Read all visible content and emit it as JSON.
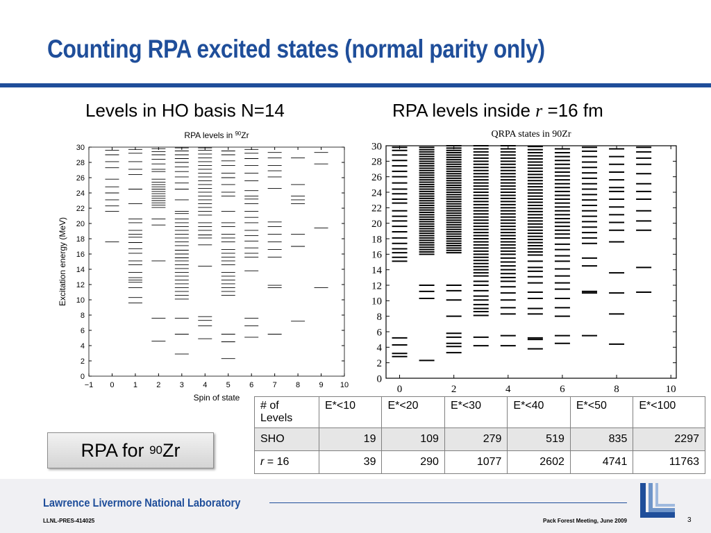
{
  "slide": {
    "title": "Counting RPA excited states (normal parity only)",
    "left_heading": "Levels in HO basis N=14",
    "right_heading": {
      "prefix": "RPA levels inside ",
      "var": "r",
      "suffix": " =16 fm"
    },
    "callout": {
      "text": "RPA for ",
      "superscript": "90",
      "element": "Zr"
    }
  },
  "table": {
    "header": [
      "# of Levels",
      "E*<10",
      "E*<20",
      "E*<30",
      "E*<40",
      "E*<50",
      "E*<100"
    ],
    "rows": [
      {
        "label": "SHO",
        "label_var": "",
        "values": [
          "19",
          "109",
          "279",
          "519",
          "835",
          "2297"
        ]
      },
      {
        "label": " = 16",
        "label_var": "r",
        "values": [
          "39",
          "290",
          "1077",
          "2602",
          "4741",
          "11763"
        ]
      }
    ]
  },
  "footer": {
    "lab": "Lawrence Livermore National Laboratory",
    "doc_id": "LLNL-PRES-414025",
    "meeting": "Pack Forest Meeting, June 2009",
    "page": "3"
  },
  "colors": {
    "brand_blue": "#1f4e9a",
    "footer_band": "#f0f0f3",
    "table_header_shade": "#e6e6e6"
  },
  "chart_data": [
    {
      "type": "scatter",
      "title": "RPA levels in 90Zr",
      "title_parts": {
        "prefix": "RPA levels in ",
        "sup": "90",
        "suffix": "Zr"
      },
      "xlabel": "Spin of state",
      "ylabel": "Excitation energy (MeV)",
      "xlim": [
        -1,
        10
      ],
      "ylim": [
        0,
        30
      ],
      "xticks": [
        "−1",
        "0",
        "1",
        "2",
        "3",
        "4",
        "5",
        "6",
        "7",
        "8",
        "9",
        "10"
      ],
      "yticks": [
        "0",
        "2",
        "4",
        "6",
        "8",
        "10",
        "12",
        "14",
        "16",
        "18",
        "20",
        "22",
        "24",
        "26",
        "28",
        "30"
      ],
      "grid": false,
      "series": [
        {
          "x": 0,
          "energies": [
            17.6,
            21.6,
            22.3,
            23.1,
            24.0,
            24.8,
            25.8,
            27.3,
            28.1,
            29.0,
            29.6
          ]
        },
        {
          "x": 1,
          "energies": [
            9.6,
            10.3,
            11.6,
            12.3,
            12.6,
            12.9,
            13.6,
            14.6,
            15.1,
            16.1,
            16.7,
            17.5,
            18.2,
            18.6,
            19.1,
            20.1,
            20.6,
            22.6,
            24.5,
            26.4,
            27.1,
            28.1,
            29.2,
            29.7
          ]
        },
        {
          "x": 2,
          "energies": [
            4.6,
            7.6,
            15.1,
            19.8,
            20.6,
            22.1,
            22.4,
            22.7,
            23.0,
            23.3,
            23.6,
            23.9,
            24.2,
            24.5,
            24.8,
            25.1,
            25.4,
            25.8,
            26.8,
            27.1,
            27.8,
            28.4,
            29.0,
            29.4,
            29.8
          ]
        },
        {
          "x": 3,
          "energies": [
            2.9,
            5.5,
            7.6,
            10.1,
            10.6,
            11.1,
            11.6,
            12.1,
            12.6,
            13.1,
            13.6,
            14.1,
            14.6,
            15.1,
            15.5,
            16.0,
            16.5,
            17.1,
            17.6,
            18.1,
            18.6,
            19.1,
            19.6,
            20.1,
            20.6,
            21.3,
            21.6,
            23.1,
            24.5,
            25.3,
            26.1,
            26.8,
            27.4,
            28.0,
            28.5,
            29.0,
            29.5,
            29.9
          ]
        },
        {
          "x": 4,
          "energies": [
            4.9,
            6.6,
            7.3,
            7.8,
            14.4,
            17.2,
            18.1,
            18.5,
            19.1,
            19.6,
            20.1,
            21.1,
            21.6,
            22.1,
            22.6,
            23.1,
            23.6,
            24.1,
            24.6,
            25.1,
            25.6,
            26.1,
            26.6,
            27.1,
            27.6,
            28.1,
            28.6,
            29.1,
            29.6,
            29.9
          ]
        },
        {
          "x": 5,
          "energies": [
            2.3,
            4.5,
            5.5,
            10.6,
            11.1,
            11.6,
            12.1,
            12.6,
            13.1,
            13.6,
            14.6,
            15.1,
            15.6,
            16.1,
            16.6,
            17.6,
            18.1,
            18.6,
            19.6,
            20.1,
            21.6,
            23.6,
            24.1,
            25.1,
            26.0,
            26.6,
            27.6,
            28.2,
            29.0,
            29.5
          ]
        },
        {
          "x": 6,
          "energies": [
            5.1,
            6.6,
            7.6,
            13.8,
            15.6,
            16.1,
            16.8,
            17.7,
            18.4,
            19.1,
            20.1,
            20.8,
            21.6,
            22.6,
            23.2,
            23.6,
            24.3,
            25.6,
            26.6,
            27.6,
            28.5,
            29.2,
            29.7
          ]
        },
        {
          "x": 7,
          "energies": [
            5.5,
            11.6,
            11.9,
            15.6,
            16.6,
            17.6,
            18.6,
            19.6,
            20.2,
            24.6,
            26.1,
            26.9,
            27.6,
            28.6,
            29.3
          ]
        },
        {
          "x": 8,
          "energies": [
            7.2,
            17.0,
            18.6,
            22.6,
            23.1,
            23.6,
            25.1,
            28.6
          ]
        },
        {
          "x": 9,
          "energies": [
            11.6,
            19.4,
            27.8,
            29.3
          ]
        }
      ]
    },
    {
      "type": "scatter",
      "title": "QRPA states in 90Zr",
      "xlabel": "",
      "ylabel": "",
      "xlim": [
        -0.5,
        10.2
      ],
      "ylim": [
        0,
        30
      ],
      "xticks": [
        "0",
        "2",
        "4",
        "6",
        "8",
        "10"
      ],
      "yticks": [
        "0",
        "2",
        "4",
        "6",
        "8",
        "10",
        "12",
        "14",
        "16",
        "18",
        "20",
        "22",
        "24",
        "26",
        "28",
        "30"
      ],
      "grid": false,
      "series": [
        {
          "x": 0,
          "energies": [
            2.8,
            3.2,
            4.3,
            5.2,
            15.1,
            15.6,
            16.2,
            16.7,
            17.4,
            18.1,
            18.9,
            19.6,
            20.3,
            20.9,
            21.6,
            22.6,
            23.1,
            23.8,
            24.4,
            25.2,
            26.0,
            26.7,
            27.4,
            28.1,
            28.8,
            29.4,
            29.8
          ]
        },
        {
          "x": 1,
          "energies": [
            2.3,
            10.3,
            11.2,
            12.0,
            16.0,
            16.3,
            16.6,
            16.9,
            17.2,
            17.5,
            17.8,
            18.1,
            18.4,
            18.7,
            19.0,
            19.3,
            19.6,
            19.9,
            20.2,
            20.5,
            20.8,
            21.1,
            21.4,
            21.7,
            22.0,
            22.3,
            22.6,
            22.9,
            23.2,
            23.5,
            23.8,
            24.1,
            24.4,
            24.7,
            25.0,
            25.3,
            25.6,
            25.9,
            26.2,
            26.5,
            26.8,
            27.1,
            27.4,
            27.7,
            28.0,
            28.3,
            28.6,
            28.9,
            29.2,
            29.5,
            29.8
          ]
        },
        {
          "x": 2,
          "energies": [
            3.3,
            4.1,
            4.5,
            5.3,
            5.8,
            8.0,
            10.1,
            11.3,
            12.0,
            16.2,
            16.5,
            16.8,
            17.1,
            17.4,
            17.7,
            18.0,
            18.3,
            18.6,
            18.9,
            19.2,
            19.5,
            19.8,
            20.1,
            20.4,
            20.7,
            21.0,
            21.3,
            21.6,
            21.9,
            22.2,
            22.5,
            22.8,
            23.1,
            23.4,
            23.7,
            24.0,
            24.3,
            24.6,
            24.9,
            25.2,
            25.5,
            25.8,
            26.1,
            26.4,
            26.7,
            27.0,
            27.3,
            27.6,
            27.9,
            28.2,
            28.5,
            28.8,
            29.1,
            29.4,
            29.7,
            30.0
          ]
        },
        {
          "x": 3,
          "energies": [
            4.2,
            5.3,
            8.1,
            8.6,
            9.0,
            9.5,
            10.1,
            10.6,
            11.3,
            12.0,
            12.5,
            13.2,
            13.6,
            14.0,
            14.4,
            14.8,
            15.2,
            15.6,
            16.0,
            16.4,
            16.8,
            17.2,
            17.6,
            18.0,
            18.4,
            18.8,
            19.2,
            19.6,
            20.0,
            20.4,
            20.8,
            21.2,
            21.6,
            22.0,
            22.4,
            22.8,
            23.2,
            23.6,
            24.0,
            24.4,
            24.8,
            25.2,
            25.6,
            26.0,
            26.4,
            26.8,
            27.2,
            27.6,
            28.0,
            28.4,
            28.8,
            29.2,
            29.6,
            30.0
          ]
        },
        {
          "x": 4,
          "energies": [
            4.2,
            5.5,
            8.3,
            9.1,
            10.1,
            11.0,
            11.8,
            12.5,
            13.0,
            13.5,
            14.0,
            14.5,
            15.0,
            15.5,
            16.0,
            16.4,
            16.8,
            17.2,
            17.6,
            18.0,
            18.4,
            18.8,
            19.2,
            19.6,
            20.0,
            20.4,
            20.8,
            21.2,
            21.6,
            22.0,
            22.4,
            22.8,
            23.2,
            23.6,
            24.0,
            24.4,
            24.8,
            25.2,
            25.6,
            26.0,
            26.4,
            26.8,
            27.2,
            27.6,
            28.0,
            28.4,
            28.8,
            29.2,
            29.6,
            30.0
          ]
        },
        {
          "x": 5,
          "energies": [
            3.8,
            5.0,
            5.2,
            8.3,
            9.0,
            10.3,
            11.1,
            12.3,
            13.1,
            13.8,
            14.3,
            15.1,
            15.9,
            16.3,
            16.7,
            17.1,
            17.5,
            17.9,
            18.3,
            18.7,
            19.1,
            19.5,
            19.9,
            20.3,
            20.7,
            21.1,
            21.5,
            21.9,
            22.3,
            22.7,
            23.1,
            23.5,
            23.9,
            24.3,
            24.7,
            25.1,
            25.5,
            25.9,
            26.3,
            26.7,
            27.1,
            27.5,
            27.9,
            28.3,
            28.7,
            29.1,
            29.5,
            29.9
          ]
        },
        {
          "x": 6,
          "energies": [
            4.5,
            5.5,
            8.0,
            9.1,
            10.3,
            11.5,
            12.3,
            13.2,
            14.1,
            15.1,
            15.8,
            16.6,
            17.3,
            18.1,
            18.6,
            19.1,
            19.6,
            20.1,
            20.6,
            21.1,
            21.6,
            22.1,
            22.6,
            23.1,
            23.6,
            24.1,
            24.6,
            25.1,
            25.6,
            26.1,
            26.6,
            27.1,
            27.6,
            28.1,
            28.6,
            29.1,
            29.6
          ]
        },
        {
          "x": 7,
          "energies": [
            5.5,
            11.0,
            11.2,
            14.5,
            15.5,
            17.4,
            18.1,
            18.8,
            19.5,
            20.2,
            20.9,
            21.6,
            22.3,
            23.0,
            23.7,
            24.4,
            25.1,
            25.8,
            26.5,
            27.2,
            27.9,
            28.6,
            29.3,
            29.8
          ]
        },
        {
          "x": 8,
          "energies": [
            4.4,
            8.3,
            11.0,
            13.6,
            17.6,
            19.1,
            20.1,
            21.1,
            22.1,
            23.1,
            24.1,
            24.6,
            25.6,
            26.6,
            27.6,
            28.6,
            29.6
          ]
        },
        {
          "x": 9,
          "energies": [
            11.1,
            14.3,
            19.1,
            20.3,
            21.6,
            23.1,
            24.1,
            25.1,
            26.4,
            27.6,
            28.4,
            29.2,
            29.8
          ]
        }
      ]
    }
  ]
}
